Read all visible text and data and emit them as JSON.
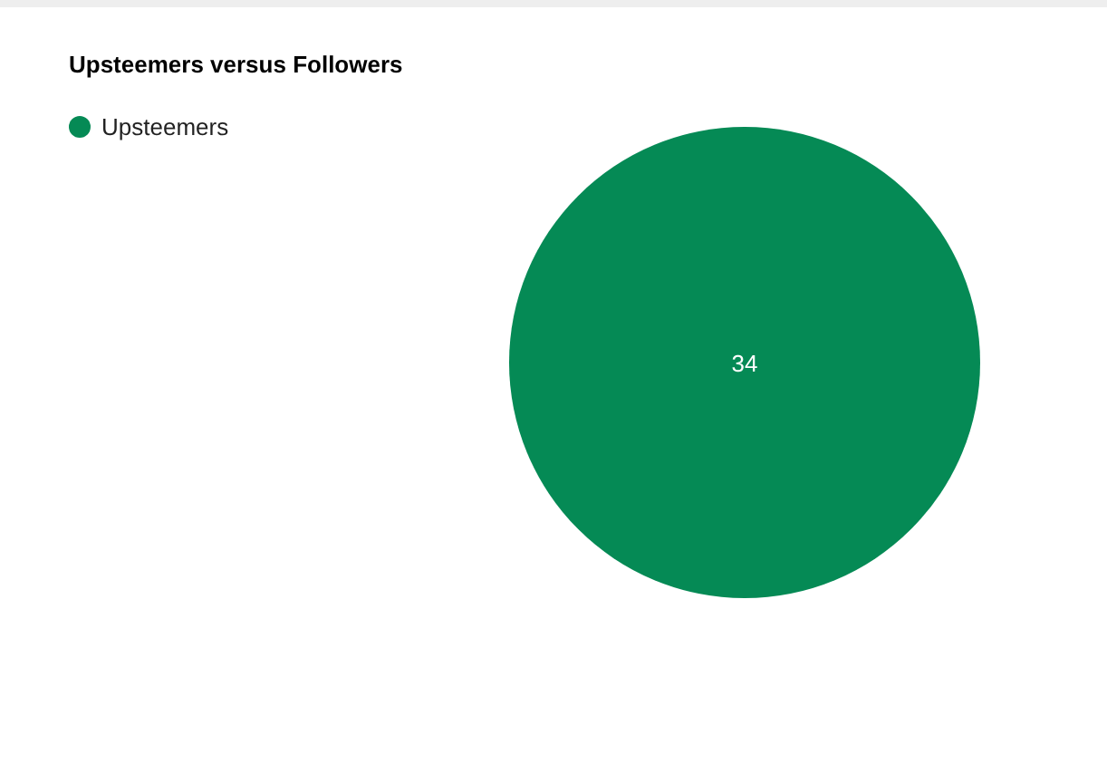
{
  "chart_data": {
    "type": "pie",
    "title": "Upsteemers versus Followers",
    "categories": [
      "Upsteemers"
    ],
    "values": [
      34
    ],
    "colors": [
      "#058a55"
    ],
    "data_labels": true,
    "legend": "top left"
  }
}
